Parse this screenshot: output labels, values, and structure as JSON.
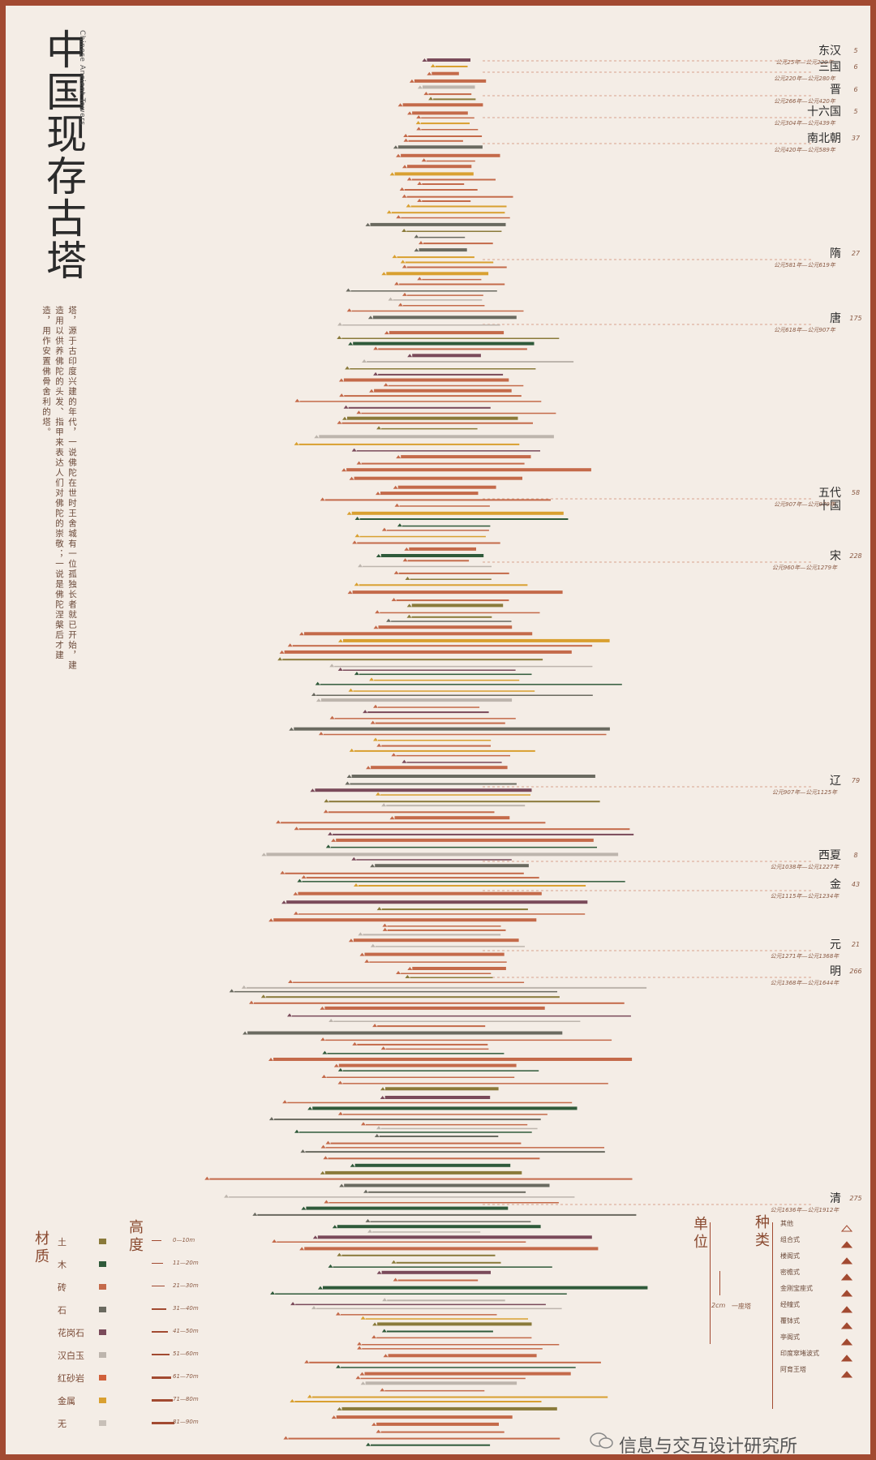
{
  "title": "中国现存古塔",
  "subtitle": "Chinese Ancient Towers",
  "intro": "塔，源于古印度兴建的年代，一说佛陀在世时王舍城有一位孤独长者就已开始，建造用以供养佛陀的头发、指甲来表达人们对佛陀的崇敬；一说是佛陀涅槃后才建造，用作安置佛骨舍利的塔。",
  "watermark": "信息与交互设计研究所",
  "colors": {
    "frame": "#a24a31",
    "background": "#f4ede6",
    "土": "#8a7a3a",
    "木": "#2f5a3a",
    "砖": "#c46a4a",
    "石": "#6a6a60",
    "花岗石": "#7a4a5a",
    "汉白玉": "#bdb5ad",
    "红砂岩": "#d0603a",
    "金属": "#d9a030",
    "无": "#c8c0b8"
  },
  "chart_data": {
    "type": "bar",
    "description_of_axes": "",
    "dynasties": [
      {
        "name": "东汉",
        "count": "5",
        "range": "公元25年—公元220年"
      },
      {
        "name": "三国",
        "count": "6",
        "range": "公元220年—公元280年"
      },
      {
        "name": "晋",
        "count": "6",
        "range": "公元266年—公元420年"
      },
      {
        "name": "十六国",
        "count": "5",
        "range": "公元304年—公元439年"
      },
      {
        "name": "南北朝",
        "count": "37",
        "range": "公元420年—公元589年"
      },
      {
        "name": "隋",
        "count": "27",
        "range": "公元581年—公元619年"
      },
      {
        "name": "唐",
        "count": "175",
        "range": "公元618年—公元907年"
      },
      {
        "name": "五代十国",
        "count": "58",
        "range": "公元907年—公元979年"
      },
      {
        "name": "宋",
        "count": "228",
        "range": "公元960年—公元1279年"
      },
      {
        "name": "辽",
        "count": "79",
        "range": "公元907年—公元1125年"
      },
      {
        "name": "西夏",
        "count": "8",
        "range": "公元1038年—公元1227年"
      },
      {
        "name": "金",
        "count": "43",
        "range": "公元1115年—公元1234年"
      },
      {
        "name": "元",
        "count": "21",
        "range": "公元1271年—公元1368年"
      },
      {
        "name": "明",
        "count": "266",
        "range": "公元1368年—公元1644年"
      },
      {
        "name": "清",
        "count": "275",
        "range": "公元1636年—公元1912年"
      }
    ],
    "materials": [
      "土",
      "木",
      "砖",
      "石",
      "花岗石",
      "汉白玉",
      "红砂岩",
      "金属",
      "无"
    ],
    "heights": [
      "0—10m",
      "11—20m",
      "21—30m",
      "31—40m",
      "41—50m",
      "51—60m",
      "61—70m",
      "71—80m",
      "81—90m"
    ],
    "types": [
      "其他",
      "组合式",
      "楼阁式",
      "密檐式",
      "金刚宝座式",
      "经幢式",
      "覆钵式",
      "亭阁式",
      "印度窣堵波式",
      "阿育王塔"
    ],
    "unit_label": "单位",
    "unit_scale": "2cm",
    "unit_item": "一座塔",
    "legend_titles": {
      "material": "材质",
      "height": "高度",
      "type": "种类"
    }
  }
}
